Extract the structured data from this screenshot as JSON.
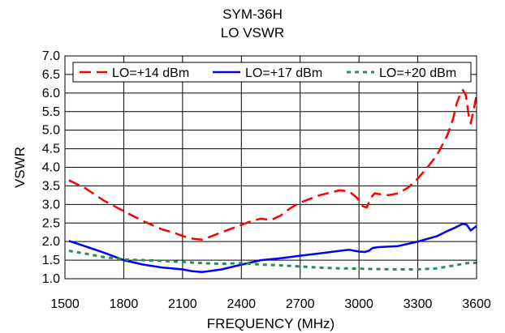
{
  "chart_data": {
    "type": "line",
    "title": "SYM-36H",
    "subtitle": "LO VSWR",
    "xlabel": "FREQUENCY (MHz)",
    "ylabel": "VSWR",
    "xlim": [
      1500,
      3600
    ],
    "ylim": [
      1.0,
      7.0
    ],
    "x_ticks": [
      "1500",
      "1800",
      "2100",
      "2400",
      "2700",
      "3000",
      "3300",
      "3600"
    ],
    "y_ticks": [
      "1.0",
      "1.5",
      "2.0",
      "2.5",
      "3.0",
      "3.5",
      "4.0",
      "4.5",
      "5.0",
      "5.5",
      "6.0",
      "6.5",
      "7.0"
    ],
    "grid": true,
    "legend_position": "top",
    "series": [
      {
        "name": "LO=+14 dBm",
        "color": "#ff0000",
        "style": "dashed",
        "points": [
          [
            1520,
            3.65
          ],
          [
            1600,
            3.45
          ],
          [
            1700,
            3.1
          ],
          [
            1800,
            2.82
          ],
          [
            1900,
            2.55
          ],
          [
            2000,
            2.32
          ],
          [
            2050,
            2.25
          ],
          [
            2100,
            2.15
          ],
          [
            2150,
            2.08
          ],
          [
            2200,
            2.05
          ],
          [
            2300,
            2.25
          ],
          [
            2400,
            2.45
          ],
          [
            2450,
            2.55
          ],
          [
            2500,
            2.62
          ],
          [
            2550,
            2.58
          ],
          [
            2600,
            2.7
          ],
          [
            2650,
            2.9
          ],
          [
            2700,
            3.05
          ],
          [
            2800,
            3.25
          ],
          [
            2900,
            3.38
          ],
          [
            2950,
            3.35
          ],
          [
            2990,
            3.18
          ],
          [
            3020,
            2.95
          ],
          [
            3040,
            2.92
          ],
          [
            3060,
            3.18
          ],
          [
            3080,
            3.3
          ],
          [
            3100,
            3.28
          ],
          [
            3150,
            3.25
          ],
          [
            3200,
            3.3
          ],
          [
            3250,
            3.45
          ],
          [
            3300,
            3.7
          ],
          [
            3350,
            4.0
          ],
          [
            3400,
            4.35
          ],
          [
            3450,
            4.85
          ],
          [
            3480,
            5.3
          ],
          [
            3500,
            5.75
          ],
          [
            3520,
            6.0
          ],
          [
            3530,
            6.08
          ],
          [
            3545,
            5.95
          ],
          [
            3560,
            5.4
          ],
          [
            3570,
            5.18
          ],
          [
            3585,
            5.55
          ],
          [
            3600,
            5.95
          ]
        ]
      },
      {
        "name": "LO=+17 dBm",
        "color": "#0000ff",
        "style": "solid",
        "points": [
          [
            1520,
            2.02
          ],
          [
            1600,
            1.88
          ],
          [
            1700,
            1.7
          ],
          [
            1800,
            1.5
          ],
          [
            1900,
            1.38
          ],
          [
            2000,
            1.3
          ],
          [
            2100,
            1.25
          ],
          [
            2150,
            1.2
          ],
          [
            2200,
            1.18
          ],
          [
            2300,
            1.25
          ],
          [
            2400,
            1.38
          ],
          [
            2500,
            1.5
          ],
          [
            2600,
            1.55
          ],
          [
            2700,
            1.62
          ],
          [
            2800,
            1.68
          ],
          [
            2900,
            1.75
          ],
          [
            2950,
            1.78
          ],
          [
            3000,
            1.73
          ],
          [
            3030,
            1.72
          ],
          [
            3050,
            1.75
          ],
          [
            3070,
            1.83
          ],
          [
            3100,
            1.85
          ],
          [
            3200,
            1.88
          ],
          [
            3300,
            2.0
          ],
          [
            3400,
            2.15
          ],
          [
            3450,
            2.28
          ],
          [
            3500,
            2.4
          ],
          [
            3530,
            2.48
          ],
          [
            3550,
            2.45
          ],
          [
            3570,
            2.3
          ],
          [
            3590,
            2.38
          ],
          [
            3600,
            2.42
          ]
        ]
      },
      {
        "name": "LO=+20 dBm",
        "color": "#2e8b57",
        "style": "dotted",
        "points": [
          [
            1520,
            1.75
          ],
          [
            1600,
            1.68
          ],
          [
            1700,
            1.58
          ],
          [
            1800,
            1.52
          ],
          [
            1900,
            1.5
          ],
          [
            2000,
            1.48
          ],
          [
            2100,
            1.45
          ],
          [
            2200,
            1.42
          ],
          [
            2300,
            1.4
          ],
          [
            2400,
            1.42
          ],
          [
            2500,
            1.38
          ],
          [
            2600,
            1.36
          ],
          [
            2700,
            1.33
          ],
          [
            2800,
            1.3
          ],
          [
            2900,
            1.28
          ],
          [
            3000,
            1.27
          ],
          [
            3100,
            1.26
          ],
          [
            3200,
            1.25
          ],
          [
            3300,
            1.25
          ],
          [
            3400,
            1.28
          ],
          [
            3500,
            1.37
          ],
          [
            3550,
            1.42
          ],
          [
            3600,
            1.43
          ]
        ]
      }
    ]
  }
}
